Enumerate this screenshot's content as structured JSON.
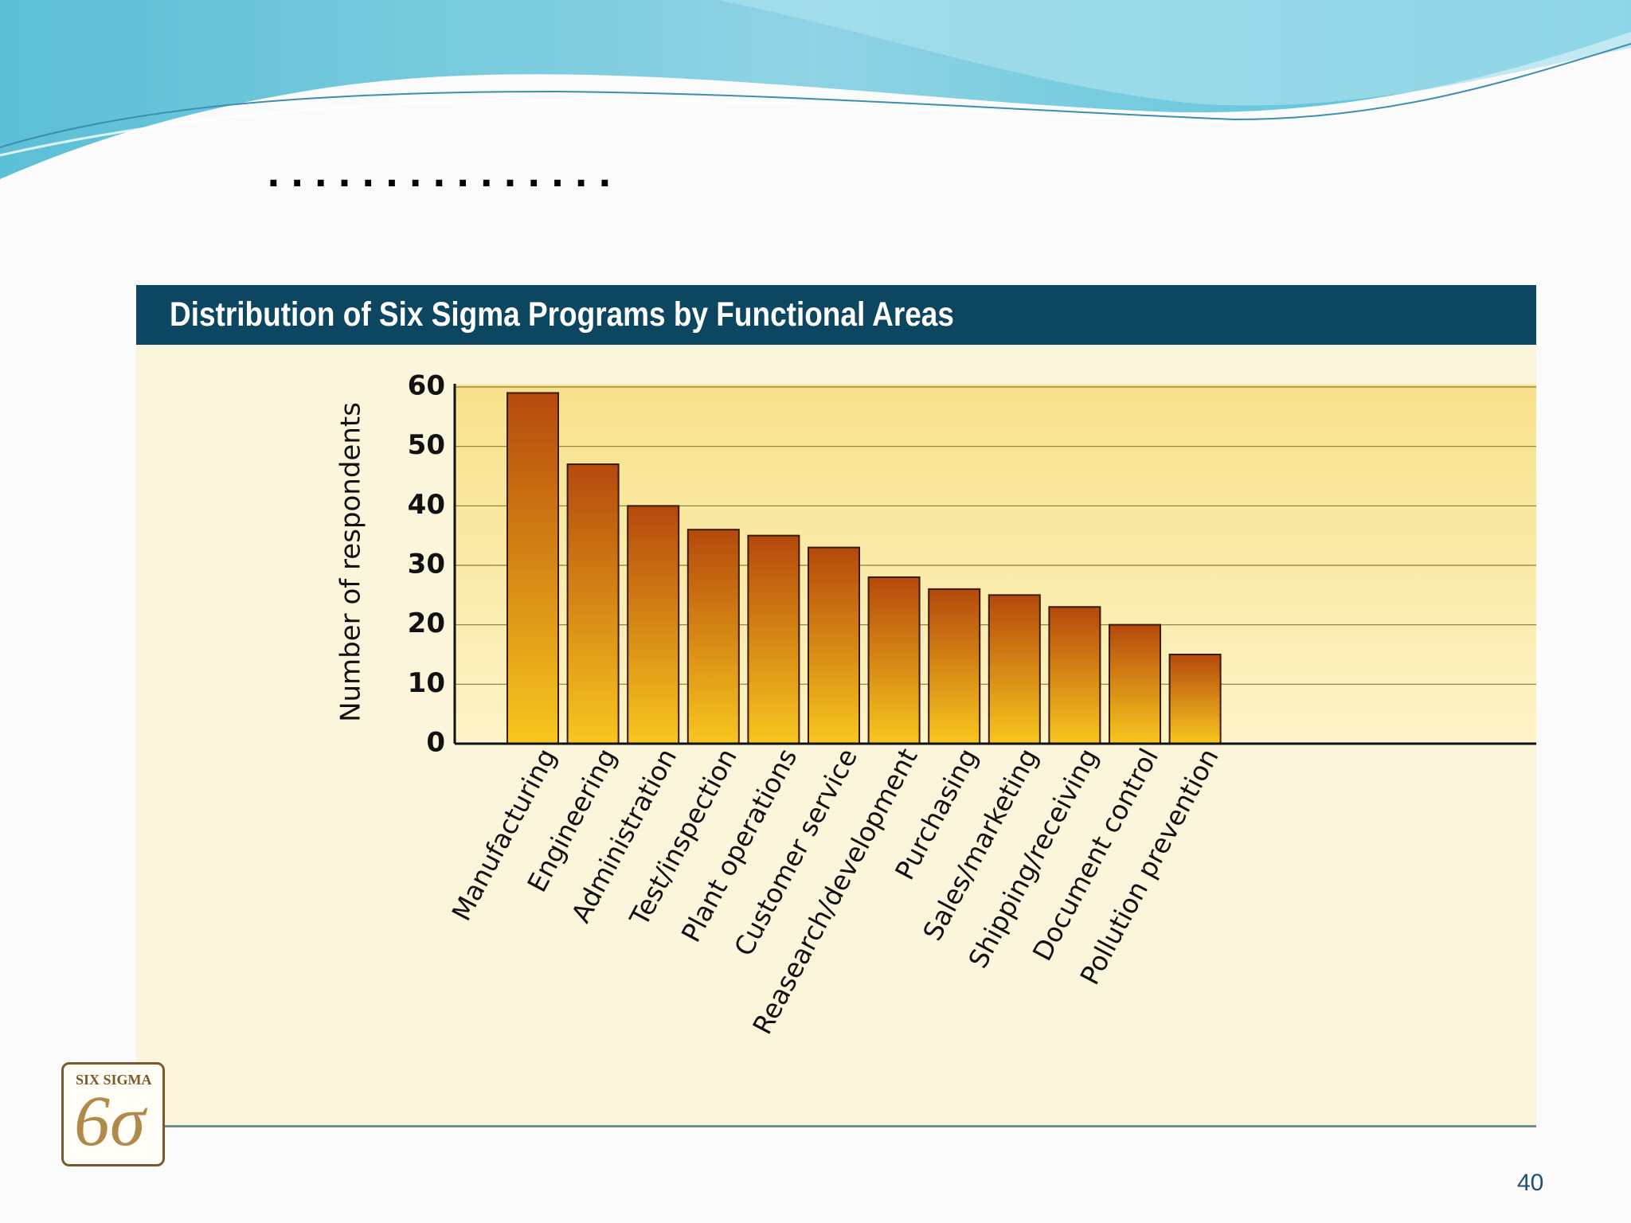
{
  "slide": {
    "dots": "...............",
    "page_number": "40",
    "logo_text": "SIX SIGMA"
  },
  "colors": {
    "title_bar": "#0d4660",
    "panel_bg": "#fbf5dc",
    "plot_bg_top": "#f7e28a",
    "plot_bg_bottom": "#fdf3c6",
    "bar_top": "#b5490c",
    "bar_bottom": "#f7c71e",
    "wave": "#6fc9da"
  },
  "chart_data": {
    "type": "bar",
    "title": "Distribution of Six Sigma Programs by Functional Areas",
    "xlabel": "",
    "ylabel": "Number of respondents",
    "ylim": [
      0,
      60
    ],
    "yticks": [
      0,
      10,
      20,
      30,
      40,
      50,
      60
    ],
    "grid": true,
    "categories": [
      "Manufacturing",
      "Engineering",
      "Administration",
      "Test/inspection",
      "Plant operations",
      "Customer service",
      "Reasearch/development",
      "Purchasing",
      "Sales/marketing",
      "Shipping/receiving",
      "Document control",
      "Pollution prevention"
    ],
    "values": [
      59,
      47,
      40,
      36,
      35,
      33,
      28,
      26,
      25,
      23,
      20,
      15
    ]
  }
}
